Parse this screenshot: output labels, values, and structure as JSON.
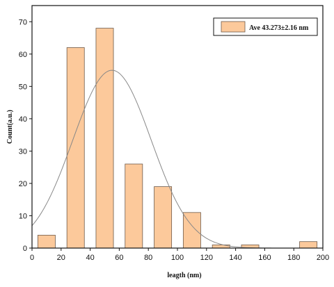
{
  "chart_data": {
    "type": "bar",
    "title": "",
    "xlabel": "leagth (nm)",
    "ylabel": "Count(a.u.)",
    "x": [
      10,
      30,
      50,
      70,
      90,
      110,
      130,
      150,
      190
    ],
    "values": [
      4,
      62,
      68,
      26,
      19,
      11,
      1,
      1,
      2
    ],
    "bin_width": 12,
    "xlim": [
      0,
      200
    ],
    "ylim": [
      0,
      75
    ],
    "xticks": [
      0,
      20,
      40,
      60,
      80,
      100,
      120,
      140,
      160,
      180,
      200
    ],
    "yticks": [
      0,
      10,
      20,
      30,
      40,
      50,
      60,
      70
    ],
    "legend": {
      "label": "Ave 43.273±2.16 nm",
      "position": "top-right"
    },
    "fit_curve": {
      "type": "gaussian",
      "peak_x": 55,
      "peak_y": 55,
      "sigma": 27
    },
    "grid": false,
    "colors": {
      "bar_fill": "#FCC99B",
      "bar_stroke": "#6d5a4a",
      "curve": "#888888",
      "axis": "#111111"
    }
  }
}
